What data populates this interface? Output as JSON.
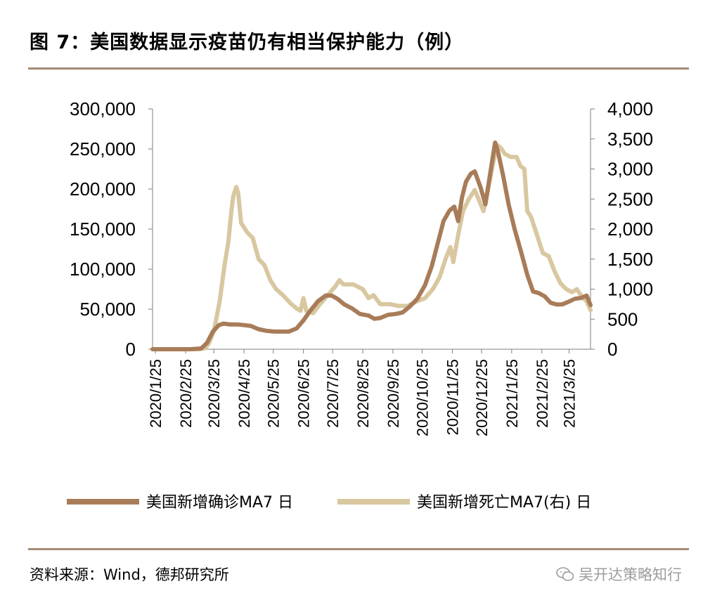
{
  "header": {
    "title": "图 7：美国数据显示疫苗仍有相当保护能力（例）"
  },
  "footer": {
    "source": "资料来源：Wind，德邦研究所",
    "watermark": "吴开达策略知行"
  },
  "colors": {
    "rule": "#a48a75",
    "cases": "#a87c59",
    "deaths": "#d8c7a0",
    "axis": "#7f7f7f"
  },
  "chart_data": {
    "type": "line",
    "x_ticks": [
      "2020/1/25",
      "2020/2/25",
      "2020/3/25",
      "2020/4/25",
      "2020/5/25",
      "2020/6/25",
      "2020/7/25",
      "2020/8/25",
      "2020/9/25",
      "2020/10/25",
      "2020/11/25",
      "2020/12/25",
      "2021/1/25",
      "2021/2/25",
      "2021/3/25"
    ],
    "x_range": [
      "2020/1/22",
      "2021/4/16"
    ],
    "y_left": {
      "ticks": [
        "300,000",
        "250,000",
        "200,000",
        "150,000",
        "100,000",
        "50,000",
        "0"
      ],
      "range": [
        0,
        300000
      ]
    },
    "y_right": {
      "ticks": [
        "4,000",
        "3,500",
        "3,000",
        "2,500",
        "2,000",
        "1,500",
        "1,000",
        "500",
        "0"
      ],
      "range": [
        0,
        4000
      ]
    },
    "legend": [
      "美国新增确诊MA7 日",
      "美国新增死亡MA7(右) 日"
    ],
    "series": [
      {
        "name": "美国新增确诊MA7 日",
        "axis": "left",
        "points": [
          [
            "2020/1/22",
            0
          ],
          [
            "2020/3/1",
            0
          ],
          [
            "2020/3/12",
            1000
          ],
          [
            "2020/3/18",
            8000
          ],
          [
            "2020/3/24",
            22000
          ],
          [
            "2020/3/30",
            30000
          ],
          [
            "2020/4/4",
            32000
          ],
          [
            "2020/4/10",
            31000
          ],
          [
            "2020/4/18",
            31000
          ],
          [
            "2020/4/26",
            30000
          ],
          [
            "2020/5/2",
            29000
          ],
          [
            "2020/5/10",
            25000
          ],
          [
            "2020/5/18",
            23000
          ],
          [
            "2020/5/26",
            22000
          ],
          [
            "2020/6/2",
            22000
          ],
          [
            "2020/6/10",
            22000
          ],
          [
            "2020/6/18",
            26000
          ],
          [
            "2020/6/25",
            36000
          ],
          [
            "2020/7/2",
            48000
          ],
          [
            "2020/7/10",
            60000
          ],
          [
            "2020/7/18",
            67000
          ],
          [
            "2020/7/24",
            67000
          ],
          [
            "2020/7/30",
            63000
          ],
          [
            "2020/8/6",
            56000
          ],
          [
            "2020/8/14",
            51000
          ],
          [
            "2020/8/22",
            44000
          ],
          [
            "2020/8/31",
            42000
          ],
          [
            "2020/9/6",
            38000
          ],
          [
            "2020/9/12",
            39000
          ],
          [
            "2020/9/20",
            43000
          ],
          [
            "2020/9/28",
            44000
          ],
          [
            "2020/10/5",
            46000
          ],
          [
            "2020/10/12",
            53000
          ],
          [
            "2020/10/20",
            63000
          ],
          [
            "2020/10/28",
            80000
          ],
          [
            "2020/11/4",
            104000
          ],
          [
            "2020/11/10",
            132000
          ],
          [
            "2020/11/16",
            160000
          ],
          [
            "2020/11/22",
            173000
          ],
          [
            "2020/11/27",
            178000
          ],
          [
            "2020/12/1",
            160000
          ],
          [
            "2020/12/5",
            190000
          ],
          [
            "2020/12/9",
            209000
          ],
          [
            "2020/12/14",
            219000
          ],
          [
            "2020/12/18",
            222000
          ],
          [
            "2020/12/24",
            202000
          ],
          [
            "2020/12/29",
            181000
          ],
          [
            "2021/1/3",
            220000
          ],
          [
            "2021/1/8",
            258000
          ],
          [
            "2021/1/11",
            246000
          ],
          [
            "2021/1/16",
            218000
          ],
          [
            "2021/1/22",
            180000
          ],
          [
            "2021/1/28",
            150000
          ],
          [
            "2021/2/4",
            120000
          ],
          [
            "2021/2/10",
            93000
          ],
          [
            "2021/2/16",
            72000
          ],
          [
            "2021/2/22",
            70000
          ],
          [
            "2021/2/28",
            66000
          ],
          [
            "2021/3/6",
            58000
          ],
          [
            "2021/3/12",
            56000
          ],
          [
            "2021/3/18",
            56000
          ],
          [
            "2021/3/24",
            59000
          ],
          [
            "2021/3/31",
            63000
          ],
          [
            "2021/4/6",
            64000
          ],
          [
            "2021/4/12",
            67000
          ],
          [
            "2021/4/16",
            55000
          ]
        ]
      },
      {
        "name": "美国新增死亡MA7(右) 日",
        "axis": "right",
        "points": [
          [
            "2020/1/22",
            0
          ],
          [
            "2020/3/1",
            0
          ],
          [
            "2020/3/10",
            0
          ],
          [
            "2020/3/16",
            20
          ],
          [
            "2020/3/20",
            100
          ],
          [
            "2020/3/25",
            300
          ],
          [
            "2020/3/31",
            800
          ],
          [
            "2020/4/5",
            1400
          ],
          [
            "2020/4/9",
            1800
          ],
          [
            "2020/4/12",
            2300
          ],
          [
            "2020/4/14",
            2550
          ],
          [
            "2020/4/17",
            2700
          ],
          [
            "2020/4/19",
            2600
          ],
          [
            "2020/4/22",
            2100
          ],
          [
            "2020/4/28",
            1950
          ],
          [
            "2020/5/4",
            1850
          ],
          [
            "2020/5/10",
            1500
          ],
          [
            "2020/5/16",
            1400
          ],
          [
            "2020/5/22",
            1150
          ],
          [
            "2020/5/28",
            1000
          ],
          [
            "2020/6/4",
            900
          ],
          [
            "2020/6/12",
            760
          ],
          [
            "2020/6/18",
            680
          ],
          [
            "2020/6/22",
            640
          ],
          [
            "2020/6/25",
            850
          ],
          [
            "2020/6/28",
            640
          ],
          [
            "2020/7/5",
            600
          ],
          [
            "2020/7/12",
            750
          ],
          [
            "2020/7/20",
            900
          ],
          [
            "2020/7/28",
            1050
          ],
          [
            "2020/8/1",
            1150
          ],
          [
            "2020/8/5",
            1080
          ],
          [
            "2020/8/15",
            1080
          ],
          [
            "2020/8/25",
            1000
          ],
          [
            "2020/8/31",
            850
          ],
          [
            "2020/9/5",
            900
          ],
          [
            "2020/9/12",
            750
          ],
          [
            "2020/9/22",
            750
          ],
          [
            "2020/10/1",
            720
          ],
          [
            "2020/10/10",
            720
          ],
          [
            "2020/10/20",
            800
          ],
          [
            "2020/10/28",
            850
          ],
          [
            "2020/11/5",
            1000
          ],
          [
            "2020/11/12",
            1200
          ],
          [
            "2020/11/18",
            1500
          ],
          [
            "2020/11/23",
            1700
          ],
          [
            "2020/11/26",
            1450
          ],
          [
            "2020/12/1",
            1900
          ],
          [
            "2020/12/6",
            2300
          ],
          [
            "2020/12/12",
            2500
          ],
          [
            "2020/12/18",
            2650
          ],
          [
            "2020/12/22",
            2500
          ],
          [
            "2020/12/27",
            2300
          ],
          [
            "2020/12/31",
            2600
          ],
          [
            "2021/1/6",
            3100
          ],
          [
            "2021/1/10",
            3400
          ],
          [
            "2021/1/14",
            3350
          ],
          [
            "2021/1/18",
            3250
          ],
          [
            "2021/1/24",
            3200
          ],
          [
            "2021/1/30",
            3200
          ],
          [
            "2021/2/3",
            3050
          ],
          [
            "2021/2/7",
            3000
          ],
          [
            "2021/2/10",
            2300
          ],
          [
            "2021/2/14",
            2200
          ],
          [
            "2021/2/20",
            1900
          ],
          [
            "2021/2/26",
            1600
          ],
          [
            "2021/3/4",
            1550
          ],
          [
            "2021/3/10",
            1300
          ],
          [
            "2021/3/16",
            1100
          ],
          [
            "2021/3/22",
            1000
          ],
          [
            "2021/3/28",
            950
          ],
          [
            "2021/4/2",
            1000
          ],
          [
            "2021/4/8",
            850
          ],
          [
            "2021/4/12",
            800
          ],
          [
            "2021/4/16",
            650
          ]
        ]
      }
    ]
  }
}
